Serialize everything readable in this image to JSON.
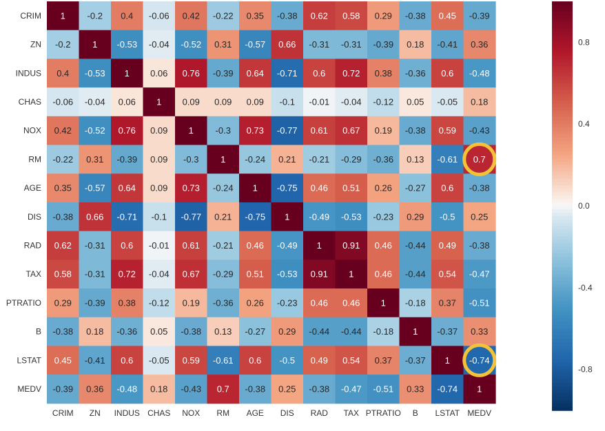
{
  "chart_data": {
    "type": "heatmap",
    "title": "",
    "xlabel": "",
    "ylabel": "",
    "labels": [
      "CRIM",
      "ZN",
      "INDUS",
      "CHAS",
      "NOX",
      "RM",
      "AGE",
      "DIS",
      "RAD",
      "TAX",
      "PTRATIO",
      "B",
      "LSTAT",
      "MEDV"
    ],
    "values": [
      [
        1,
        -0.2,
        0.4,
        -0.06,
        0.42,
        -0.22,
        0.35,
        -0.38,
        0.62,
        0.58,
        0.29,
        -0.38,
        0.45,
        -0.39
      ],
      [
        -0.2,
        1,
        -0.53,
        -0.04,
        -0.52,
        0.31,
        -0.57,
        0.66,
        -0.31,
        -0.31,
        -0.39,
        0.18,
        -0.41,
        0.36
      ],
      [
        0.4,
        -0.53,
        1,
        0.06,
        0.76,
        -0.39,
        0.64,
        -0.71,
        0.6,
        0.72,
        0.38,
        -0.36,
        0.6,
        -0.48
      ],
      [
        -0.06,
        -0.04,
        0.06,
        1,
        0.09,
        0.09,
        0.09,
        -0.1,
        -0.01,
        -0.04,
        -0.12,
        0.05,
        -0.05,
        0.18
      ],
      [
        0.42,
        -0.52,
        0.76,
        0.09,
        1,
        -0.3,
        0.73,
        -0.77,
        0.61,
        0.67,
        0.19,
        -0.38,
        0.59,
        -0.43
      ],
      [
        -0.22,
        0.31,
        -0.39,
        0.09,
        -0.3,
        1,
        -0.24,
        0.21,
        -0.21,
        -0.29,
        -0.36,
        0.13,
        -0.61,
        0.7
      ],
      [
        0.35,
        -0.57,
        0.64,
        0.09,
        0.73,
        -0.24,
        1,
        -0.75,
        0.46,
        0.51,
        0.26,
        -0.27,
        0.6,
        -0.38
      ],
      [
        -0.38,
        0.66,
        -0.71,
        -0.1,
        -0.77,
        0.21,
        -0.75,
        1,
        -0.49,
        -0.53,
        -0.23,
        0.29,
        -0.5,
        0.25
      ],
      [
        0.62,
        -0.31,
        0.6,
        -0.01,
        0.61,
        -0.21,
        0.46,
        -0.49,
        1,
        0.91,
        0.46,
        -0.44,
        0.49,
        -0.38
      ],
      [
        0.58,
        -0.31,
        0.72,
        -0.04,
        0.67,
        -0.29,
        0.51,
        -0.53,
        0.91,
        1,
        0.46,
        -0.44,
        0.54,
        -0.47
      ],
      [
        0.29,
        -0.39,
        0.38,
        -0.12,
        0.19,
        -0.36,
        0.26,
        -0.23,
        0.46,
        0.46,
        1,
        -0.18,
        0.37,
        -0.51
      ],
      [
        -0.38,
        0.18,
        -0.36,
        0.05,
        -0.38,
        0.13,
        -0.27,
        0.29,
        -0.44,
        -0.44,
        -0.18,
        1,
        -0.37,
        0.33
      ],
      [
        0.45,
        -0.41,
        0.6,
        -0.05,
        0.59,
        -0.61,
        0.6,
        -0.5,
        0.49,
        0.54,
        0.37,
        -0.37,
        1,
        -0.74
      ],
      [
        -0.39,
        0.36,
        -0.48,
        0.18,
        -0.43,
        0.7,
        -0.38,
        0.25,
        -0.38,
        -0.47,
        -0.51,
        0.33,
        -0.74,
        1
      ]
    ],
    "color_range": [
      -1,
      1
    ],
    "colormap": "RdBu_r",
    "colorbar_ticks": [
      0.8,
      0.4,
      0.0,
      -0.4,
      -0.8
    ],
    "colorbar_tick_labels": [
      "0.8",
      "0.4",
      "0.0",
      "-0.4",
      "-0.8"
    ],
    "highlighted_cells": [
      {
        "row": "RM",
        "col": "MEDV",
        "value": 0.7
      },
      {
        "row": "LSTAT",
        "col": "MEDV",
        "value": -0.74
      }
    ],
    "highlight_color": "#f3c23a",
    "grid": false,
    "legend": "colorbar-right"
  }
}
